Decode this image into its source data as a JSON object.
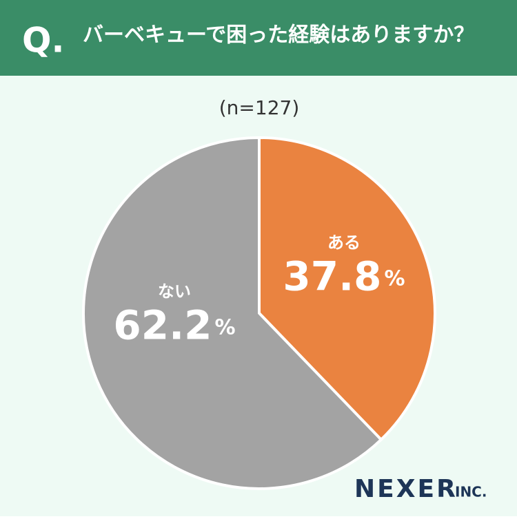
{
  "header": {
    "marker": "Q."
  },
  "brand": {
    "name": "NEXER",
    "suffix": "INC."
  },
  "chart_data": {
    "type": "pie",
    "title": "バーベキューで困った経験はありますか？",
    "subtitle": "(n=127)",
    "categories": [
      "ある",
      "ない"
    ],
    "values": [
      37.8,
      62.2
    ],
    "value_labels": [
      "37.8%",
      "62.2%"
    ],
    "colors": [
      "#ea8340",
      "#a3a3a3"
    ]
  }
}
